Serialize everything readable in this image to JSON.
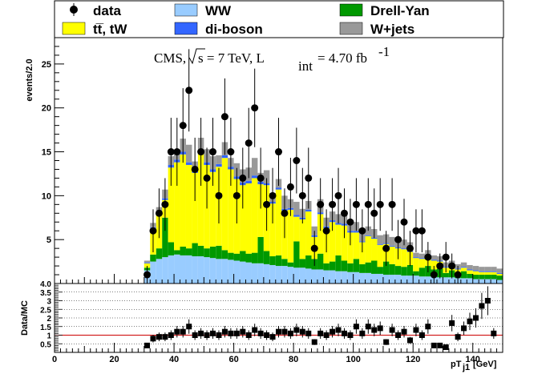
{
  "legend": {
    "data": "data",
    "ttbar": "tt̅, tW",
    "ww": "WW",
    "diboson": "di-boson",
    "drellyan": "Drell-Yan",
    "wjets": "W+jets"
  },
  "cms_label": {
    "cms": "CMS,",
    "sqrt_s": "s = 7 TeV, L",
    "int": "int",
    "lumi": "= 4.70 fb",
    "exp": "-1"
  },
  "colors": {
    "ttbar": "#ffff00",
    "ww": "#99ccff",
    "diboson": "#3366ff",
    "drellyan": "#009900",
    "wjets": "#999999",
    "ratio_line": "#cc0000"
  },
  "chart_data": [
    {
      "type": "bar",
      "stacked": true,
      "xlabel": "pT",
      "xlabel_sub": "j1",
      "xlabel_unit": " [GeV]",
      "ylabel": "events/2.0",
      "xlim": [
        0,
        150
      ],
      "ylim": [
        0,
        28
      ],
      "x_ticks": [
        0,
        20,
        40,
        60,
        80,
        100,
        120,
        140
      ],
      "y_ticks": [
        5,
        10,
        15,
        20,
        25
      ],
      "bin_width": 2,
      "bin_starts": [
        30,
        32,
        34,
        36,
        38,
        40,
        42,
        44,
        46,
        48,
        50,
        52,
        54,
        56,
        58,
        60,
        62,
        64,
        66,
        68,
        70,
        72,
        74,
        76,
        78,
        80,
        82,
        84,
        86,
        88,
        90,
        92,
        94,
        96,
        98,
        100,
        102,
        104,
        106,
        108,
        110,
        112,
        114,
        116,
        118,
        120,
        122,
        124,
        126,
        128,
        130,
        132,
        134,
        136,
        138,
        140,
        142,
        144,
        146,
        148
      ],
      "series": [
        {
          "name": "WW",
          "values": [
            1.5,
            2.5,
            2.8,
            3,
            3.2,
            3.3,
            3.2,
            3.2,
            3.1,
            3.1,
            3,
            2.9,
            2.8,
            2.8,
            2.7,
            2.6,
            2.5,
            2.4,
            2.3,
            2.3,
            2.2,
            2.1,
            2,
            2,
            1.9,
            1.8,
            1.8,
            1.7,
            1.6,
            1.6,
            1.5,
            1.5,
            1.4,
            1.4,
            1.3,
            1.3,
            1.2,
            1.2,
            1.1,
            1.1,
            1,
            1,
            1,
            0.9,
            0.9,
            0.9,
            0.8,
            0.8,
            0.8,
            0.7,
            0.7,
            0.7,
            0.6,
            0.6,
            0.6,
            0.5,
            0.5,
            0.5,
            0.5,
            0.4
          ]
        },
        {
          "name": "Drell-Yan",
          "values": [
            0.3,
            0.8,
            1.2,
            4.5,
            1.5,
            0.5,
            1,
            0.8,
            1.5,
            1.2,
            1,
            1.3,
            1.5,
            1,
            0.8,
            0.8,
            1.2,
            1,
            1.2,
            3,
            1.5,
            1,
            1.2,
            0.8,
            0.5,
            3,
            1,
            1.5,
            1.2,
            1.8,
            0.8,
            1,
            1.8,
            1.2,
            1,
            1.5,
            1,
            1.2,
            1.5,
            0.8,
            1.5,
            1.2,
            1,
            1,
            1.2,
            0.5,
            1,
            1.2,
            0.8,
            1,
            0.5,
            0.8,
            0.5,
            0.8,
            0.5,
            0.5,
            0.5,
            0.5,
            0.5,
            0.5
          ]
        },
        {
          "name": "tt̅, tW",
          "values": [
            0.5,
            3,
            4,
            2,
            8.5,
            10,
            10.5,
            9.5,
            8,
            10.5,
            9.5,
            8.5,
            9,
            10.5,
            9.5,
            8.5,
            7.5,
            8,
            8.5,
            6,
            7.5,
            6,
            7.5,
            5.5,
            6,
            2.8,
            4.5,
            5,
            2.5,
            4.5,
            4,
            4.5,
            3.5,
            4,
            3.5,
            3,
            2.5,
            3,
            2.5,
            2.5,
            2,
            2,
            2,
            2,
            1.5,
            1.5,
            1,
            1.2,
            1,
            0.8,
            0.6,
            0.5,
            0.5,
            0.4,
            0.4,
            0.4,
            0.3,
            0.3,
            0.3,
            0.2
          ]
        },
        {
          "name": "di-boson",
          "values": [
            0.1,
            0.1,
            0.2,
            0.2,
            0.3,
            0.3,
            0.3,
            0.3,
            0.3,
            0.3,
            0.3,
            0.3,
            0.3,
            0.3,
            0.3,
            0.3,
            0.3,
            0.3,
            0.3,
            0.3,
            0.2,
            0.2,
            0.2,
            0.2,
            0.2,
            0.2,
            0.2,
            0.2,
            0.2,
            0.2,
            0.2,
            0.2,
            0.2,
            0.2,
            0.2,
            0.2,
            0.1,
            0.1,
            0.1,
            0.1,
            0.1,
            0.1,
            0.1,
            0.1,
            0.1,
            0.1,
            0.1,
            0.1,
            0.1,
            0.1,
            0.1,
            0.1,
            0.1,
            0.1,
            0.1,
            0.1,
            0.1,
            0.1,
            0.1,
            0.1
          ]
        },
        {
          "name": "W+jets",
          "values": [
            0.2,
            0.5,
            0.5,
            1,
            1,
            1,
            1.5,
            2,
            1,
            1.5,
            1.5,
            1.5,
            1,
            1.5,
            1,
            1.5,
            1.5,
            1.5,
            2,
            1,
            1.5,
            1,
            1,
            1.5,
            1,
            1.5,
            1,
            1,
            1,
            1.5,
            1,
            1,
            1,
            1,
            1,
            1,
            1,
            1,
            1,
            1,
            1,
            1,
            1,
            1,
            1,
            0.5,
            0.5,
            0.5,
            0.5,
            0.5,
            0.5,
            0.5,
            0.5,
            0.5,
            0.5,
            0.5,
            0.5,
            0.5,
            0.5,
            0.5
          ]
        }
      ],
      "data_points": {
        "name": "data",
        "x": [
          31,
          33,
          35,
          37,
          39,
          41,
          43,
          45,
          47,
          49,
          51,
          53,
          55,
          57,
          59,
          61,
          63,
          65,
          67,
          69,
          71,
          73,
          75,
          77,
          79,
          81,
          83,
          85,
          87,
          89,
          91,
          93,
          95,
          97,
          99,
          101,
          103,
          105,
          107,
          109,
          111,
          113,
          115,
          117,
          119,
          121,
          123,
          125,
          127,
          129,
          131,
          133,
          135,
          137,
          139,
          141,
          143,
          145,
          147,
          149
        ],
        "y": [
          1,
          6,
          8,
          9,
          15,
          15,
          18,
          22,
          13,
          15,
          12,
          15,
          10,
          19,
          15,
          10,
          12,
          16,
          20,
          12,
          9,
          10,
          15,
          8,
          11,
          14,
          10,
          12,
          4,
          9,
          6,
          9,
          10,
          8,
          7,
          9,
          6,
          9,
          8,
          9,
          4,
          9,
          5,
          7,
          4,
          6,
          6,
          3,
          1,
          2,
          3,
          2,
          1,
          0,
          0,
          0,
          0,
          0,
          0,
          0
        ]
      }
    },
    {
      "type": "scatter",
      "xlabel": "pT",
      "ylabel": "Data/MC",
      "xlim": [
        0,
        150
      ],
      "ylim": [
        0,
        4
      ],
      "x_ticks": [
        0,
        20,
        40,
        60,
        80,
        100,
        120,
        140
      ],
      "y_ticks": [
        0.5,
        1,
        1.5,
        2,
        2.5,
        3,
        3.5,
        4
      ],
      "y_tick_labels": [
        "0.5",
        "1",
        "1.5",
        "2",
        "2.5",
        "3",
        "3.5",
        "4.0"
      ],
      "reference_line": 1,
      "x": [
        31,
        33,
        35,
        37,
        39,
        41,
        43,
        45,
        47,
        49,
        51,
        53,
        55,
        57,
        59,
        61,
        63,
        65,
        67,
        69,
        71,
        73,
        75,
        77,
        79,
        81,
        83,
        85,
        87,
        89,
        91,
        93,
        95,
        97,
        99,
        101,
        103,
        105,
        107,
        109,
        111,
        113,
        115,
        117,
        119,
        121,
        123,
        125,
        127,
        129,
        131,
        133,
        135,
        137,
        139,
        141,
        143,
        145,
        147
      ],
      "y": [
        0.4,
        0.8,
        0.9,
        0.9,
        1.0,
        1.2,
        1.2,
        1.5,
        1.0,
        1.1,
        1.0,
        1.1,
        1.0,
        1.2,
        1.1,
        1.1,
        1.2,
        1.0,
        1.3,
        1.1,
        1.0,
        0.9,
        1.2,
        1.2,
        1.1,
        1.3,
        1.2,
        1.1,
        0.6,
        1.1,
        1.0,
        1.2,
        1.3,
        1.1,
        1.0,
        1.5,
        1.1,
        1.5,
        1.3,
        1.4,
        0.6,
        1.3,
        1.0,
        1.2,
        0.7,
        1.3,
        1.0,
        1.5,
        0.4,
        0.4,
        0.3,
        1.7,
        0.9,
        1.4,
        1.8,
        2.0,
        2.7,
        3.0,
        1.1
      ]
    }
  ]
}
